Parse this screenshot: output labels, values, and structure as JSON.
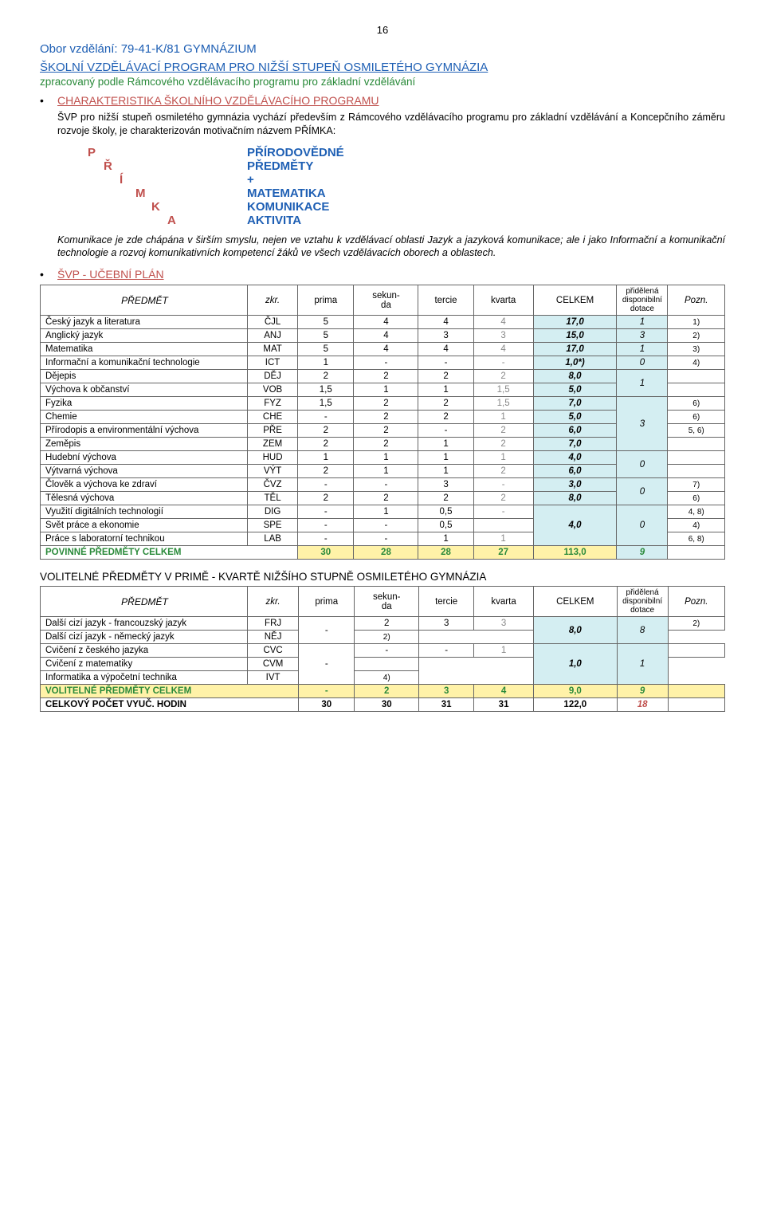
{
  "page_number": "16",
  "program_line": "Obor vzdělání: 79-41-K/81 GYMNÁZIUM",
  "section_title": "ŠKOLNÍ VZDĚLÁVACÍ PROGRAM PRO NIŽŠÍ STUPEŇ OSMILETÉHO GYMNÁZIA",
  "subtitle_green": "zpracovaný podle Rámcového vzdělávacího programu pro základní vzdělávání",
  "heading1": "CHARAKTERISTIKA ŠKOLNÍHO VZDĚLÁVACÍHO PROGRAMU",
  "body1": "ŠVP pro nižší stupeň osmiletého gymnázia vychází především z Rámcového vzdělávacího programu pro základní vzdělávání a Koncepčního záměru rozvoje školy, je charakterizován motivačním názvem PŘÍMKA:",
  "acro": [
    {
      "l": "P",
      "indent": 0,
      "w": "PŘÍRODOVĚDNÉ"
    },
    {
      "l": "Ř",
      "indent": 20,
      "w": "PŘEDMĚTY"
    },
    {
      "l": "Í",
      "indent": 40,
      "w": "+"
    },
    {
      "l": "M",
      "indent": 60,
      "w": "MATEMATIKA"
    },
    {
      "l": "K",
      "indent": 80,
      "w": "KOMUNIKACE"
    },
    {
      "l": "A",
      "indent": 100,
      "w": "AKTIVITA"
    }
  ],
  "note": "Komunikace je zde chápána v širším smyslu, nejen ve vztahu k vzdělávací oblasti Jazyk a jazyková komunikace; ale i jako Informační a komunikační technologie a rozvoj komunikativních kompetencí žáků ve všech vzdělávacích oborech a oblastech.",
  "heading2": "ŠVP - UČEBNÍ PLÁN",
  "table1": {
    "headers": [
      "PŘEDMĚT",
      "zkr.",
      "prima",
      "sekun-da",
      "tercie",
      "kvarta",
      "CELKEM",
      "přidělená disponibilní dotace",
      "Pozn."
    ],
    "rows": [
      {
        "s": "Český jazyk a literatura",
        "z": "ČJL",
        "p": "5",
        "se": "4",
        "t": "4",
        "k": "4",
        "c": "17,0",
        "d": "1",
        "dspan": 1,
        "n": "1)"
      },
      {
        "s": "Anglický jazyk",
        "z": "ANJ",
        "p": "5",
        "se": "4",
        "t": "3",
        "k": "3",
        "c": "15,0",
        "d": "3",
        "dspan": 1,
        "n": "2)"
      },
      {
        "s": "Matematika",
        "z": "MAT",
        "p": "5",
        "se": "4",
        "t": "4",
        "k": "4",
        "c": "17,0",
        "d": "1",
        "dspan": 1,
        "n": "3)"
      },
      {
        "s": "Informační a komunikační technologie",
        "z": "ICT",
        "p": "1",
        "se": "-",
        "t": "-",
        "k": "-",
        "c": "1,0*)",
        "d": "0",
        "dspan": 1,
        "n": "4)"
      },
      {
        "s": "Dějepis",
        "z": "DĚJ",
        "p": "2",
        "se": "2",
        "t": "2",
        "k": "2",
        "c": "8,0",
        "d": "1",
        "dspan": 2,
        "n": ""
      },
      {
        "s": "Výchova k občanství",
        "z": "VOB",
        "p": "1,5",
        "se": "1",
        "t": "1",
        "k": "1,5",
        "c": "5,0",
        "n": ""
      },
      {
        "s": "Fyzika",
        "z": "FYZ",
        "p": "1,5",
        "se": "2",
        "t": "2",
        "k": "1,5",
        "c": "7,0",
        "d": "3",
        "dspan": 4,
        "n": "6)"
      },
      {
        "s": "Chemie",
        "z": "CHE",
        "p": "-",
        "se": "2",
        "t": "2",
        "k": "1",
        "c": "5,0",
        "n": "6)"
      },
      {
        "s": "Přírodopis a environmentální výchova",
        "z": "PŘE",
        "p": "2",
        "se": "2",
        "t": "-",
        "k": "2",
        "c": "6,0",
        "n": "5, 6)"
      },
      {
        "s": "Zeměpis",
        "z": "ZEM",
        "p": "2",
        "se": "2",
        "t": "1",
        "k": "2",
        "c": "7,0",
        "n": ""
      },
      {
        "s": "Hudební výchova",
        "z": "HUD",
        "p": "1",
        "se": "1",
        "t": "1",
        "k": "1",
        "c": "4,0",
        "d": "0",
        "dspan": 2,
        "n": ""
      },
      {
        "s": "Výtvarná výchova",
        "z": "VÝT",
        "p": "2",
        "se": "1",
        "t": "1",
        "k": "2",
        "c": "6,0",
        "n": ""
      },
      {
        "s": "Člověk a výchova ke zdraví",
        "z": "ČVZ",
        "p": "-",
        "se": "-",
        "t": "3",
        "k": "-",
        "c": "3,0",
        "d": "0",
        "dspan": 2,
        "n": "7)"
      },
      {
        "s": "Tělesná výchova",
        "z": "TĚL",
        "p": "2",
        "se": "2",
        "t": "2",
        "k": "2",
        "c": "8,0",
        "n": "6)"
      },
      {
        "s": "Využití digitálních technologií",
        "z": "DIG",
        "p": "-",
        "se": "1",
        "t": "0,5",
        "k": "-",
        "cspan": 3,
        "c": "4,0",
        "d": "0",
        "dspan": 3,
        "n": "4, 8)"
      },
      {
        "s": "Svět práce a ekonomie",
        "z": "SPE",
        "p": "-",
        "se": "-",
        "t": "0,5",
        "k": "",
        "n": "4)"
      },
      {
        "s": "Práce s laboratorní technikou",
        "z": "LAB",
        "p": "-",
        "se": "-",
        "t": "1",
        "k": "1",
        "n": "6, 8)"
      }
    ],
    "total": {
      "s": "POVINNÉ PŘEDMĚTY CELKEM",
      "p": "30",
      "se": "28",
      "t": "28",
      "k": "27",
      "c": "113,0",
      "d": "9"
    }
  },
  "vol_heading": "VOLITELNÉ PŘEDMĚTY V PRIMĚ - KVARTĚ  NIŽŠÍHO STUPNĚ OSMILETÉHO GYMNÁZIA",
  "table2": {
    "headers": [
      "PŘEDMĚT",
      "zkr.",
      "prima",
      "sekun-da",
      "tercie",
      "kvarta",
      "CELKEM",
      "přidělená disponibilní dotace",
      "Pozn."
    ],
    "rows": [
      {
        "s": "Další cizí jazyk - francouzský jazyk",
        "z": "FRJ",
        "pspan": 2,
        "p": "-",
        "se": "2",
        "t": "3",
        "k": "3",
        "cspan": 2,
        "c": "8,0",
        "dspan": 2,
        "d": "8",
        "n": "2)"
      },
      {
        "s": "Další cizí jazyk - německý jazyk",
        "z": "NĚJ",
        "n": "2)"
      },
      {
        "s": "Cvičení z českého jazyka",
        "z": "CVC",
        "pspan": 3,
        "p": "-",
        "se": "-",
        "t": "-",
        "k": "1",
        "cspan": 3,
        "c": "1,0",
        "dspan": 3,
        "d": "1",
        "n": ""
      },
      {
        "s": "Cvičení z matematiky",
        "z": "CVM",
        "n": ""
      },
      {
        "s": "Informatika a výpočetní technika",
        "z": "IVT",
        "n": "4)"
      }
    ],
    "total_vol": {
      "s": "VOLITELNÉ PŘEDMĚTY CELKEM",
      "p": "-",
      "se": "2",
      "t": "3",
      "k": "4",
      "c": "9,0",
      "d": "9"
    },
    "grand": {
      "s": "CELKOVÝ POČET VYUČ.  HODIN",
      "p": "30",
      "se": "30",
      "t": "31",
      "k": "31",
      "c": "122,0",
      "d": "18"
    }
  }
}
